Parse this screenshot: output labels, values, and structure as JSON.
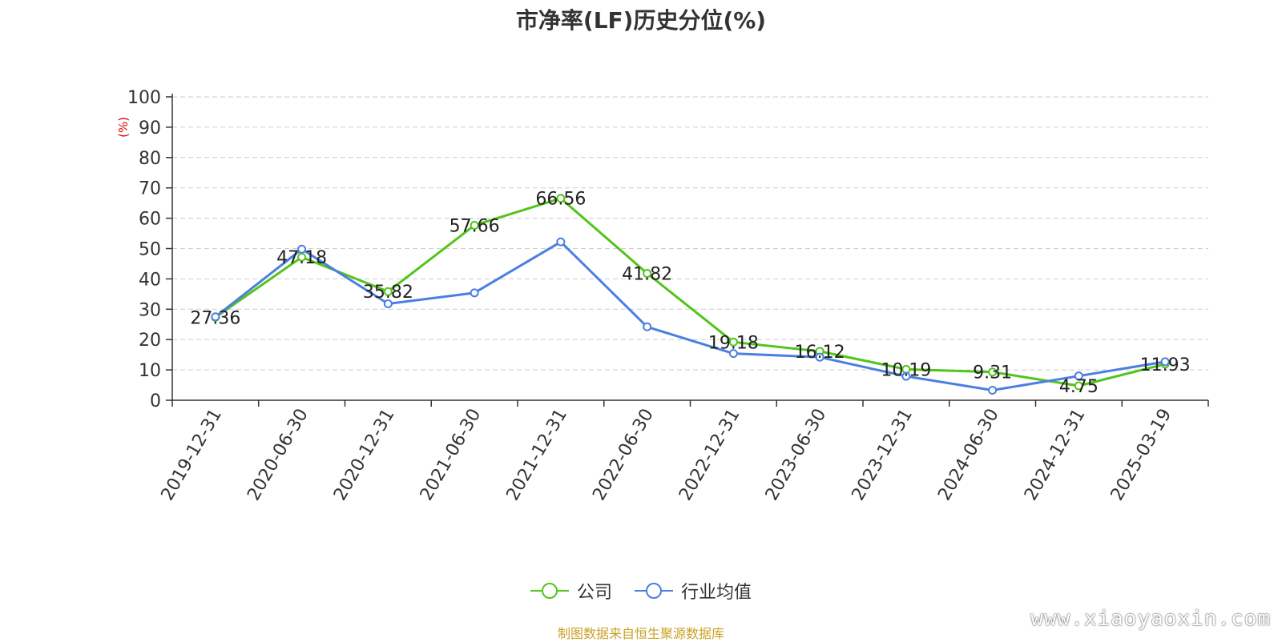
{
  "title": "市净率(LF)历史分位(%)",
  "source_text": "制图数据来自恒生聚源数据库",
  "watermark": "www.xiaoyaoxin.com",
  "chart_data": {
    "type": "line",
    "title": "市净率(LF)历史分位(%)",
    "ylabel": "(%)",
    "xlabel": "",
    "ylim": [
      0,
      100
    ],
    "yticks": [
      0,
      10,
      20,
      30,
      40,
      50,
      60,
      70,
      80,
      90,
      100
    ],
    "grid": true,
    "legend_position": "bottom",
    "categories": [
      "2019-12-31",
      "2020-06-30",
      "2020-12-31",
      "2021-06-30",
      "2021-12-31",
      "2022-06-30",
      "2022-12-31",
      "2023-06-30",
      "2023-12-31",
      "2024-06-30",
      "2024-12-31",
      "2025-03-19"
    ],
    "series": [
      {
        "name": "公司",
        "color": "#52c41a",
        "values": [
          27.36,
          47.18,
          35.82,
          57.66,
          66.56,
          41.82,
          19.18,
          16.12,
          10.19,
          9.31,
          4.75,
          11.93
        ],
        "labels": [
          "27.36",
          "47.18",
          "35.82",
          "57.66",
          "66.56",
          "41.82",
          "19.18",
          "16.12",
          "10.19",
          "9.31",
          "4.75",
          "11.93"
        ]
      },
      {
        "name": "行业均值",
        "color": "#4a7fe0",
        "values": [
          27.5,
          49.8,
          31.8,
          35.4,
          52.2,
          24.2,
          15.4,
          14.2,
          7.9,
          3.3,
          8.0,
          12.7
        ]
      }
    ]
  }
}
